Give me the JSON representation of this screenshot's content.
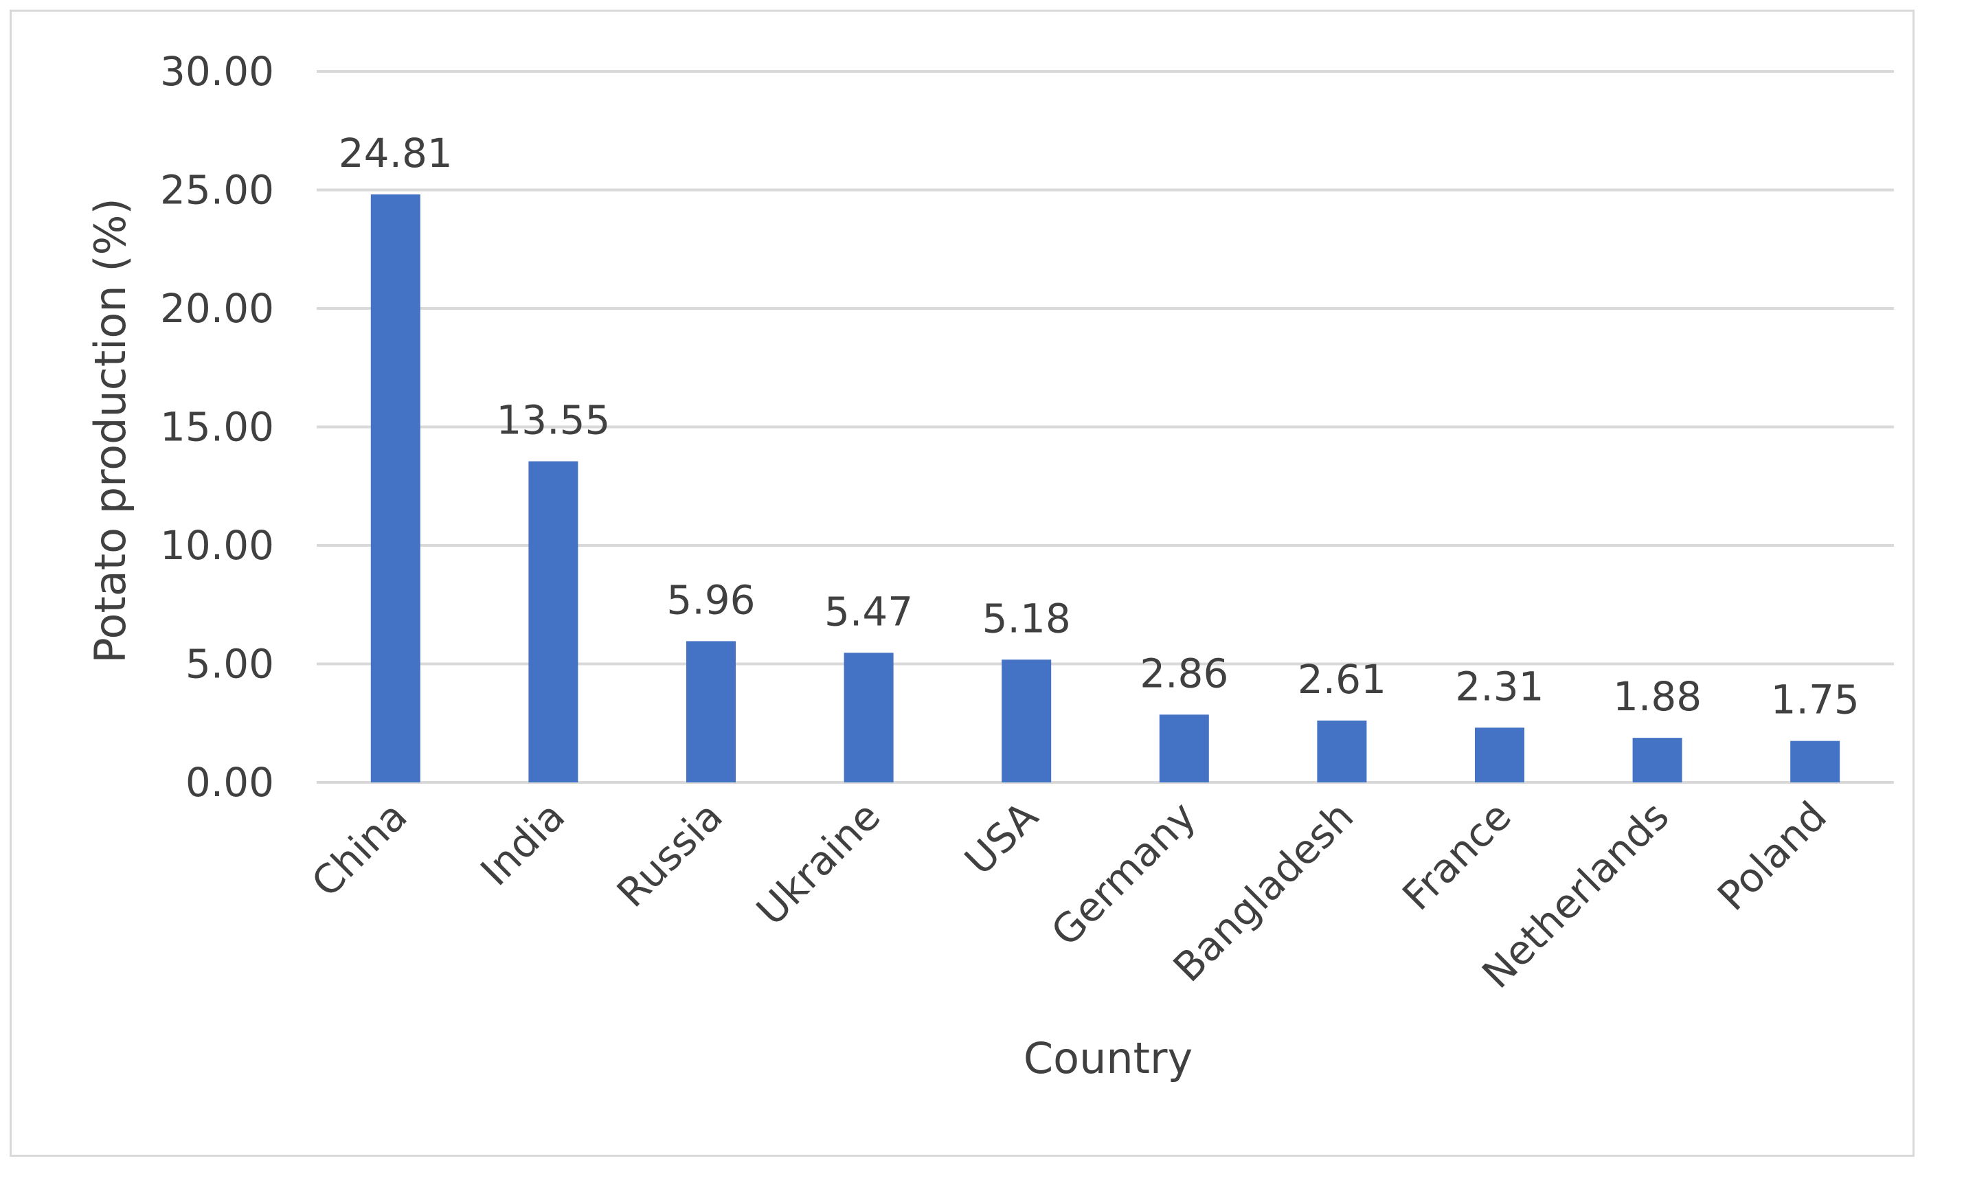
{
  "chart_data": {
    "type": "bar",
    "title": "",
    "xlabel": "Country",
    "ylabel": "Potato production (%)",
    "ylim": [
      0,
      30
    ],
    "ytick_step": 5,
    "ytick_decimals": 2,
    "grid": true,
    "legend": "none",
    "categories": [
      "China",
      "India",
      "Russia",
      "Ukraine",
      "USA",
      "Germany",
      "Bangladesh",
      "France",
      "Netherlands",
      "Poland"
    ],
    "values": [
      24.81,
      13.55,
      5.96,
      5.47,
      5.18,
      2.86,
      2.61,
      2.31,
      1.88,
      1.75
    ],
    "colors": {
      "bar": "#4472c4",
      "grid": "#d9d9d9",
      "text": "#404040"
    }
  }
}
